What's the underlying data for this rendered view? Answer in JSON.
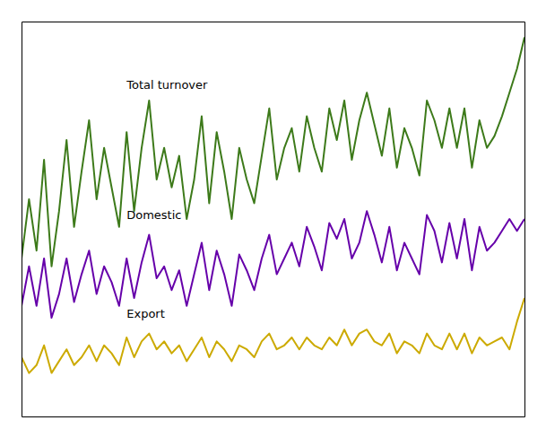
{
  "chart_data": {
    "type": "line",
    "x": [
      0,
      1,
      2,
      3,
      4,
      5,
      6,
      7,
      8,
      9,
      10,
      11,
      12,
      13,
      14,
      15,
      16,
      17,
      18,
      19,
      20,
      21,
      22,
      23,
      24,
      25,
      26,
      27,
      28,
      29,
      30,
      31,
      32,
      33,
      34,
      35,
      36,
      37,
      38,
      39,
      40,
      41,
      42,
      43,
      44,
      45,
      46,
      47,
      48,
      49,
      50,
      51,
      52,
      53,
      54,
      55,
      56,
      57,
      58,
      59,
      60,
      61,
      62,
      63,
      64,
      65,
      66,
      67
    ],
    "series": [
      {
        "color": "#3d7a1a",
        "values": [
          40,
          55,
          42,
          65,
          38,
          52,
          70,
          48,
          62,
          75,
          55,
          68,
          58,
          48,
          72,
          52,
          68,
          80,
          60,
          68,
          58,
          66,
          50,
          60,
          76,
          54,
          72,
          62,
          50,
          68,
          60,
          54,
          66,
          78,
          60,
          68,
          73,
          62,
          76,
          68,
          62,
          78,
          70,
          80,
          65,
          75,
          82,
          74,
          66,
          78,
          63,
          73,
          68,
          61,
          80,
          75,
          68,
          78,
          68,
          78,
          63,
          75,
          68,
          71,
          76,
          82,
          88,
          96
        ]
      },
      {
        "color": "#6600aa",
        "values": [
          28,
          38,
          28,
          40,
          25,
          31,
          40,
          29,
          36,
          42,
          31,
          38,
          34,
          28,
          40,
          30,
          39,
          46,
          35,
          38,
          32,
          37,
          28,
          36,
          44,
          32,
          42,
          36,
          28,
          41,
          37,
          32,
          40,
          46,
          36,
          40,
          44,
          38,
          48,
          43,
          37,
          49,
          45,
          50,
          40,
          44,
          52,
          46,
          39,
          48,
          37,
          44,
          40,
          36,
          51,
          47,
          39,
          49,
          40,
          50,
          37,
          48,
          42,
          44,
          47,
          50,
          47,
          50
        ]
      },
      {
        "color": "#ccaa00",
        "values": [
          15,
          11,
          13,
          18,
          11,
          14,
          17,
          13,
          15,
          18,
          14,
          18,
          16,
          13,
          20,
          15,
          19,
          21,
          17,
          19,
          16,
          18,
          14,
          17,
          20,
          15,
          19,
          17,
          14,
          18,
          17,
          15,
          19,
          21,
          17,
          18,
          20,
          17,
          20,
          18,
          17,
          20,
          18,
          22,
          18,
          21,
          22,
          19,
          18,
          21,
          16,
          19,
          18,
          16,
          21,
          18,
          17,
          21,
          17,
          21,
          16,
          20,
          18,
          19,
          20,
          17,
          24,
          30
        ]
      }
    ],
    "annotations": [
      {
        "text": "Total turnover",
        "x": 14,
        "y": 83
      },
      {
        "text": "Domestic",
        "x": 14,
        "y": 50
      },
      {
        "text": "Export",
        "x": 14,
        "y": 25
      }
    ],
    "xlim": [
      0,
      67
    ],
    "ylim": [
      0,
      100
    ],
    "grid": false,
    "tick_labels": false
  }
}
